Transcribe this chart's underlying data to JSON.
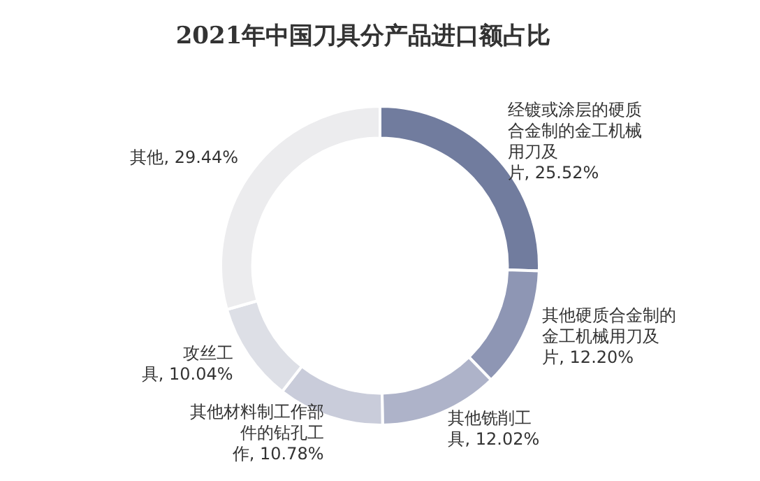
{
  "chart_data": {
    "type": "donut",
    "title": "2021年中国刀具分产品进口额占比",
    "categories": [
      "经镀或涂层的硬质合金制的金工机械用刀及片",
      "其他硬质合金制的金工机械用刀及片",
      "其他铣削工具",
      "其他材料制工作部件的钻孔工作",
      "攻丝工具",
      "其他"
    ],
    "values": [
      25.52,
      12.2,
      12.02,
      10.78,
      10.04,
      29.44
    ],
    "value_labels": [
      "25.52%",
      "12.20%",
      "12.02%",
      "10.78%",
      "10.04%",
      "29.44%"
    ],
    "colors": [
      "#717c9e",
      "#8e96b4",
      "#aeb3c9",
      "#c9ccda",
      "#dddfe6",
      "#ececee"
    ],
    "legend": false
  }
}
